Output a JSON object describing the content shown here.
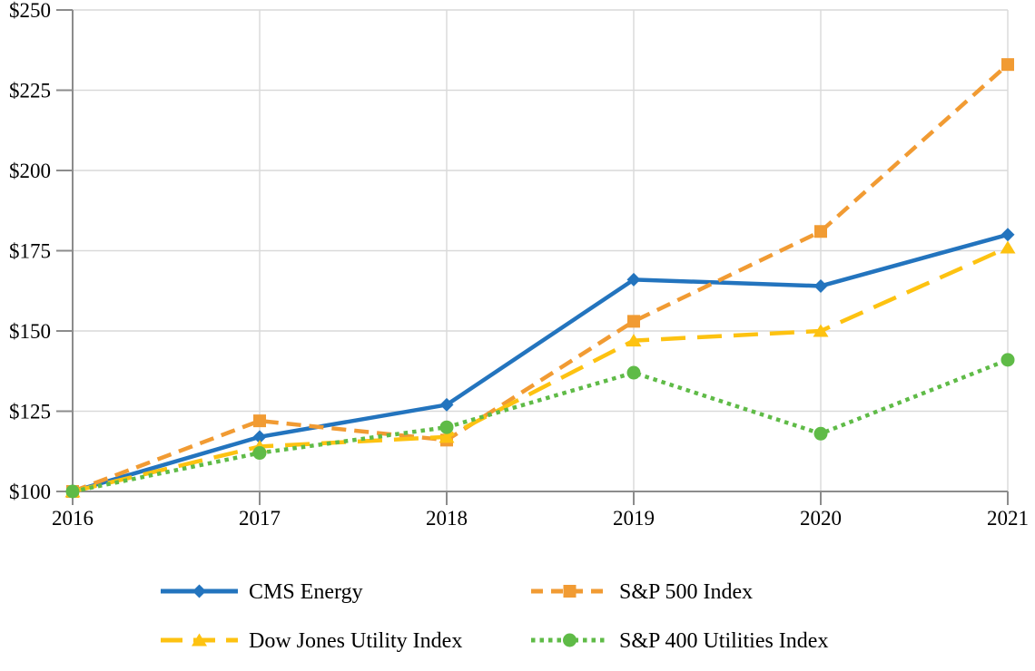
{
  "chart_data": {
    "type": "line",
    "title": "",
    "x_labels": [
      "2016",
      "2017",
      "2018",
      "2019",
      "2020",
      "2021"
    ],
    "y_axis": {
      "min": 100,
      "max": 250,
      "step": 25,
      "ticks": [
        {
          "value": 100,
          "label": "$100"
        },
        {
          "value": 125,
          "label": "$125"
        },
        {
          "value": 150,
          "label": "$150"
        },
        {
          "value": 175,
          "label": "$175"
        },
        {
          "value": 200,
          "label": "$200"
        },
        {
          "value": 225,
          "label": "$225"
        },
        {
          "value": 250,
          "label": "$250"
        }
      ]
    },
    "series": [
      {
        "name": "CMS Energy",
        "values": [
          100,
          117,
          127,
          166,
          164,
          180
        ],
        "color": "#2374BE",
        "line_style": "solid",
        "marker": "diamond"
      },
      {
        "name": "S&P 500 Index",
        "values": [
          100,
          122,
          116,
          153,
          181,
          233
        ],
        "color": "#F19B33",
        "line_style": "dashed",
        "marker": "square"
      },
      {
        "name": "Dow Jones Utility Index",
        "values": [
          100,
          114,
          117,
          147,
          150,
          176
        ],
        "color": "#FDC211",
        "line_style": "long-dash",
        "marker": "triangle"
      },
      {
        "name": "S&P 400 Utilities Index",
        "values": [
          100,
          112,
          120,
          137,
          118,
          141
        ],
        "color": "#5FBB47",
        "line_style": "dotted",
        "marker": "circle"
      }
    ],
    "legend": {
      "position": "bottom",
      "columns": 2
    },
    "grid": true,
    "styles": {
      "grid_color": "#D9D9D9",
      "axis_color": "#8C8C8C",
      "text_color": "#000000",
      "background": "#FFFFFF"
    }
  }
}
